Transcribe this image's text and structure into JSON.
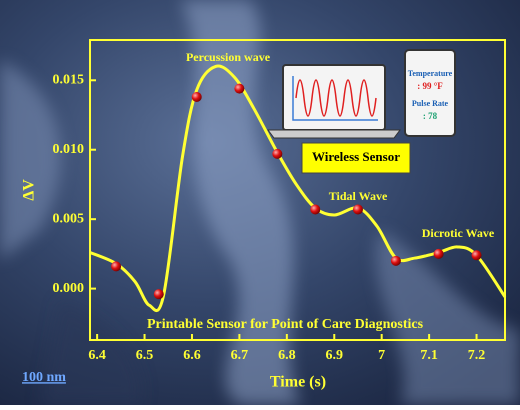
{
  "chart_data": {
    "type": "line",
    "xlabel": "Time (s)",
    "ylabel": "ΔV",
    "xlim": [
      6.385,
      7.26
    ],
    "ylim": [
      -0.0037,
      0.0179
    ],
    "xticks": [
      6.4,
      6.5,
      6.6,
      6.7,
      6.8,
      6.9,
      7.0,
      7.1,
      7.2
    ],
    "yticks": [
      {
        "value": 0,
        "label": "0.000"
      },
      {
        "value": 0.005,
        "label": "0.005"
      },
      {
        "value": 0.01,
        "label": "0.010"
      },
      {
        "value": 0.015,
        "label": "0.015"
      }
    ],
    "axis_color": "#ffff33",
    "series": [
      {
        "mode": "line",
        "color": "#ffff33",
        "x": [
          6.385,
          6.44,
          6.48,
          6.51,
          6.54,
          6.58,
          6.61,
          6.65,
          6.69,
          6.73,
          6.78,
          6.82,
          6.86,
          6.9,
          6.95,
          6.99,
          7.03,
          7.07,
          7.12,
          7.16,
          7.2,
          7.26
        ],
        "values": [
          0.0026,
          0.0018,
          0.0005,
          -0.0012,
          -0.0005,
          0.0095,
          0.0143,
          0.016,
          0.0152,
          0.013,
          0.0098,
          0.0075,
          0.0058,
          0.0053,
          0.0058,
          0.0045,
          0.0022,
          0.0022,
          0.0026,
          0.003,
          0.0024,
          -0.0006
        ]
      },
      {
        "mode": "markers",
        "color": "#e01010",
        "x": [
          6.44,
          6.53,
          6.61,
          6.7,
          6.78,
          6.86,
          6.95,
          7.03,
          7.12,
          7.2
        ],
        "values": [
          0.0016,
          -0.0004,
          0.0138,
          0.0144,
          0.0097,
          0.0057,
          0.0057,
          0.002,
          0.0025,
          0.0024
        ]
      }
    ],
    "annotations": [
      "Percussion wave",
      "Tidal Wave",
      "Dicrotic Wave",
      "Printable Sensor for Point of Care Diagnostics"
    ],
    "inset": {
      "label": "Wireless Sensor",
      "temperature_label": "Temperature",
      "temperature": ": 99 °F",
      "pulse_label": "Pulse Rate",
      "pulse": ": 78"
    },
    "scale_bar": "100 nm"
  }
}
